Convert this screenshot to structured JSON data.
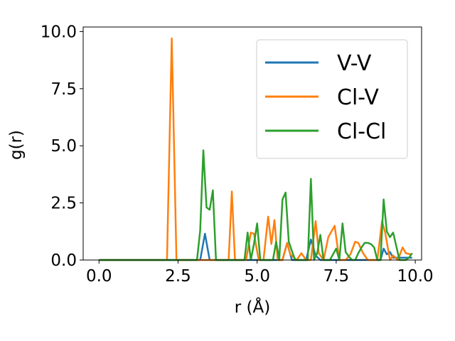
{
  "chart_data": {
    "type": "line",
    "title": "",
    "xlabel": "r (Å)",
    "ylabel": "g(r)",
    "xlim": [
      -0.5,
      10.2
    ],
    "ylim": [
      0.0,
      10.2
    ],
    "xticks": [
      0.0,
      2.5,
      5.0,
      7.5,
      10.0
    ],
    "xtick_labels": [
      "0.0",
      "2.5",
      "5.0",
      "7.5",
      "10.0"
    ],
    "yticks": [
      0.0,
      2.5,
      5.0,
      7.5,
      10.0
    ],
    "ytick_labels": [
      "0.0",
      "2.5",
      "5.0",
      "7.5",
      "10.0"
    ],
    "grid": false,
    "legend_position": "top-right",
    "series": [
      {
        "name": "V-V",
        "color": "#1f77b4",
        "x": [
          0.0,
          3.2,
          3.35,
          3.5,
          5.8,
          5.95,
          6.1,
          6.55,
          6.7,
          6.85,
          7.0,
          8.9,
          9.0,
          9.1,
          9.2,
          9.3,
          9.9
        ],
        "y": [
          0.0,
          0.0,
          1.15,
          0.0,
          0.0,
          0.75,
          0.0,
          0.0,
          0.9,
          0.2,
          0.0,
          0.0,
          0.5,
          0.25,
          0.35,
          0.1,
          0.1
        ]
      },
      {
        "name": "Cl-V",
        "color": "#ff7f0e",
        "x": [
          0.0,
          2.15,
          2.3,
          2.45,
          4.1,
          4.2,
          4.3,
          4.65,
          4.8,
          4.9,
          5.05,
          5.2,
          5.35,
          5.45,
          5.55,
          5.65,
          5.8,
          5.95,
          6.05,
          6.25,
          6.4,
          6.55,
          6.7,
          6.85,
          6.95,
          7.1,
          7.25,
          7.45,
          7.6,
          7.8,
          7.95,
          8.1,
          8.2,
          8.35,
          8.5,
          8.65,
          8.8,
          8.95,
          9.05,
          9.2,
          9.3,
          9.45,
          9.6,
          9.7,
          9.85
        ],
        "y": [
          0.0,
          0.0,
          9.7,
          0.0,
          0.0,
          3.0,
          0.0,
          0.0,
          1.2,
          1.15,
          0.0,
          0.0,
          1.9,
          0.7,
          1.75,
          0.0,
          0.0,
          0.75,
          0.25,
          0.0,
          0.3,
          0.0,
          0.0,
          1.7,
          0.3,
          0.0,
          1.0,
          1.5,
          0.0,
          0.0,
          0.25,
          0.8,
          0.75,
          0.3,
          0.0,
          0.0,
          0.0,
          1.7,
          1.2,
          0.0,
          0.2,
          0.0,
          0.55,
          0.3,
          0.25
        ]
      },
      {
        "name": "Cl-Cl",
        "color": "#2ca02c",
        "x": [
          0.0,
          3.1,
          3.2,
          3.3,
          3.4,
          3.5,
          3.6,
          3.7,
          4.6,
          4.7,
          4.8,
          4.9,
          5.0,
          5.1,
          5.4,
          5.5,
          5.6,
          5.7,
          5.8,
          5.9,
          6.0,
          6.1,
          6.2,
          6.5,
          6.6,
          6.7,
          6.8,
          6.9,
          7.0,
          7.1,
          7.3,
          7.5,
          7.6,
          7.7,
          7.8,
          7.9,
          8.0,
          8.1,
          8.2,
          8.3,
          8.4,
          8.5,
          8.6,
          8.7,
          8.8,
          8.9,
          9.0,
          9.1,
          9.2,
          9.3,
          9.5,
          9.6,
          9.7,
          9.8,
          9.9
        ],
        "y": [
          0.0,
          0.0,
          1.3,
          4.8,
          2.3,
          2.2,
          3.05,
          0.0,
          0.0,
          1.2,
          0.0,
          0.7,
          1.6,
          0.0,
          0.0,
          0.0,
          0.8,
          0.0,
          2.65,
          2.95,
          0.8,
          0.4,
          0.0,
          0.0,
          0.0,
          3.55,
          0.0,
          0.3,
          1.1,
          0.0,
          0.0,
          0.5,
          0.0,
          1.6,
          0.35,
          0.15,
          0.0,
          0.0,
          0.3,
          0.55,
          0.75,
          0.75,
          0.7,
          0.55,
          0.0,
          0.0,
          2.65,
          1.25,
          1.0,
          1.2,
          0.0,
          0.0,
          0.0,
          0.1,
          0.3
        ]
      }
    ]
  }
}
